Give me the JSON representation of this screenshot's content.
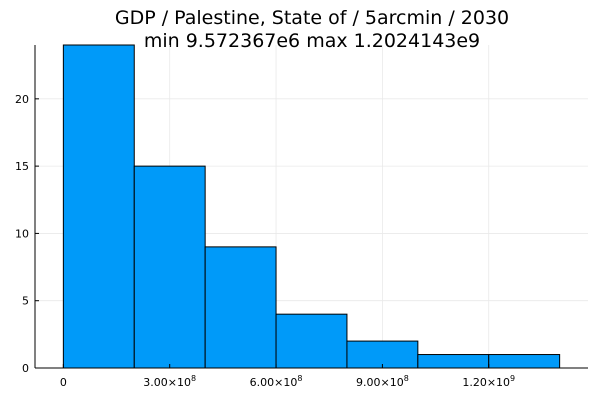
{
  "chart_data": {
    "type": "bar",
    "title": "GDP / Palestine, State of / 5arcmin / 2030",
    "subtitle": "min 9.572367e6  max 1.2024143e9",
    "xlabel": "",
    "ylabel": "",
    "bins": [
      {
        "x0": 0,
        "x1": 200000000,
        "count": 24
      },
      {
        "x0": 200000000,
        "x1": 400000000,
        "count": 15
      },
      {
        "x0": 400000000,
        "x1": 600000000,
        "count": 9
      },
      {
        "x0": 600000000,
        "x1": 800000000,
        "count": 4
      },
      {
        "x0": 800000000,
        "x1": 1000000000,
        "count": 2
      },
      {
        "x0": 1000000000,
        "x1": 1200000000,
        "count": 1
      },
      {
        "x0": 1200000000,
        "x1": 1400000000,
        "count": 1
      }
    ],
    "xlim": [
      -80000000,
      1480000000
    ],
    "ylim": [
      0,
      24
    ],
    "x_ticks": [
      {
        "value": 0,
        "base": "0",
        "exp": ""
      },
      {
        "value": 300000000,
        "base": "3.00×10",
        "exp": "8"
      },
      {
        "value": 600000000,
        "base": "6.00×10",
        "exp": "8"
      },
      {
        "value": 900000000,
        "base": "9.00×10",
        "exp": "8"
      },
      {
        "value": 1200000000,
        "base": "1.20×10",
        "exp": "9"
      }
    ],
    "y_ticks": [
      {
        "value": 0,
        "label": "0"
      },
      {
        "value": 5,
        "label": "5"
      },
      {
        "value": 10,
        "label": "10"
      },
      {
        "value": 15,
        "label": "15"
      },
      {
        "value": 20,
        "label": "20"
      }
    ],
    "grid": true,
    "legend": "none",
    "bar_color": "#009af9",
    "bar_edge_color": "#000000",
    "grid_color": "#e9e9e9"
  }
}
